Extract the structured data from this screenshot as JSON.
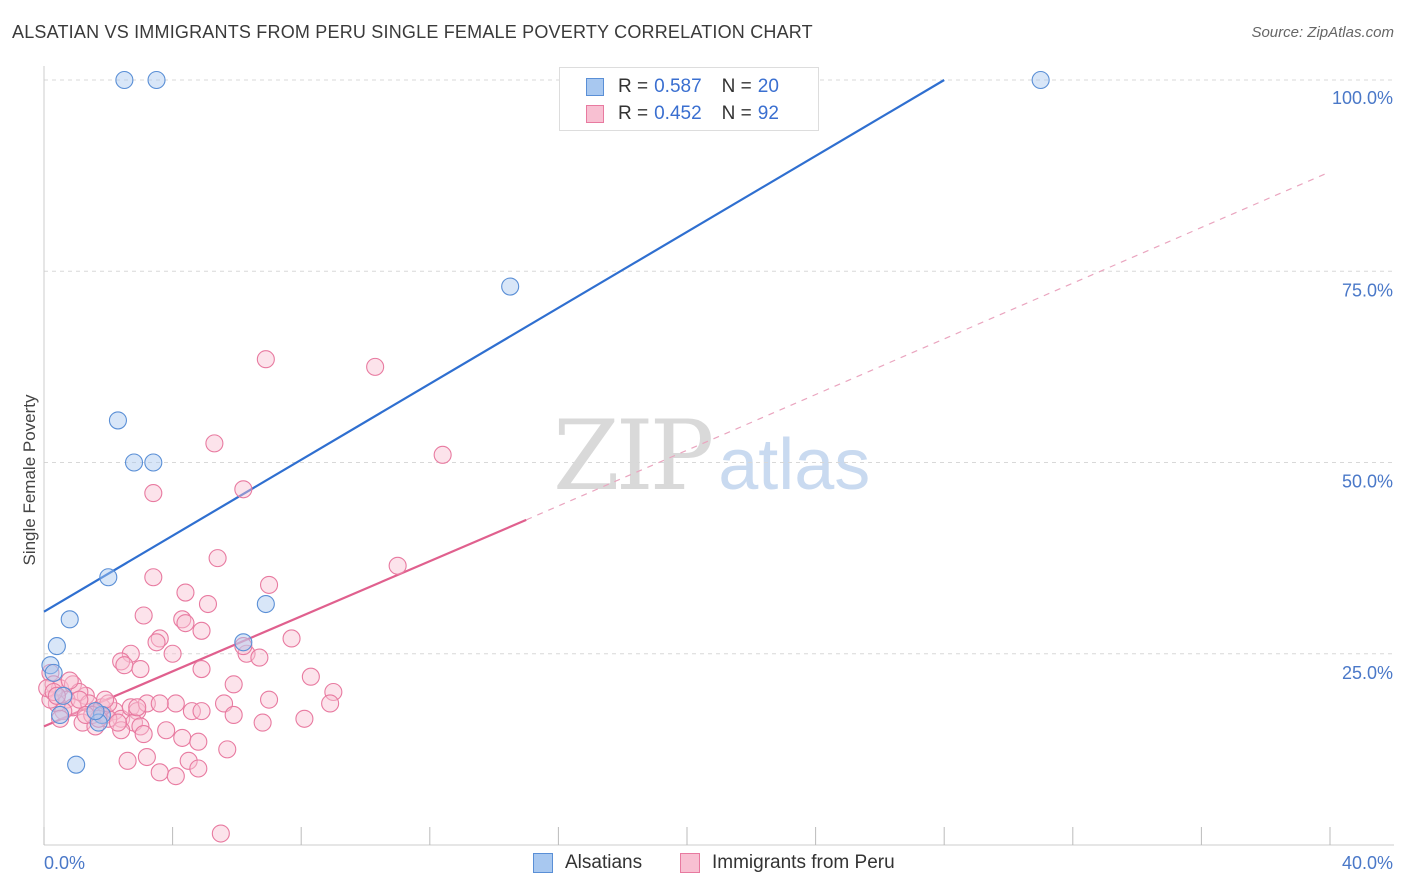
{
  "header": {
    "title": "ALSATIAN VS IMMIGRANTS FROM PERU SINGLE FEMALE POVERTY CORRELATION CHART",
    "source": "Source: ZipAtlas.com"
  },
  "watermark": {
    "zip": "ZIP",
    "atlas": "atlas"
  },
  "legend": {
    "rows": [
      {
        "r_label": "R =",
        "r_value": "0.587",
        "n_label": "N =",
        "n_value": "20"
      },
      {
        "r_label": "R =",
        "r_value": "0.452",
        "n_label": "N =",
        "n_value": "92"
      }
    ]
  },
  "bottom_legend": {
    "series1": "Alsatians",
    "series2": "Immigrants from Peru"
  },
  "colors": {
    "blue_fill": "#a8c8f0",
    "blue_stroke": "#5a8fd6",
    "blue_line": "#2f6fd0",
    "pink_fill": "#f8c0d2",
    "pink_stroke": "#e87aa0",
    "pink_line": "#e0608e",
    "axis_text": "#4a78c8",
    "grid": "#d8d8d8"
  },
  "chart_data": {
    "type": "scatter",
    "title": "ALSATIAN VS IMMIGRANTS FROM PERU SINGLE FEMALE POVERTY CORRELATION CHART",
    "xlabel": "",
    "ylabel": "Single Female Poverty",
    "xlim": [
      0,
      40
    ],
    "ylim": [
      0,
      100
    ],
    "x_tick_labels": [
      "0.0%",
      "40.0%"
    ],
    "y_ticks": [
      25,
      50,
      75,
      100
    ],
    "y_tick_labels": [
      "25.0%",
      "50.0%",
      "75.0%",
      "100.0%"
    ],
    "grid": true,
    "series": [
      {
        "name": "Alsatians",
        "r": 0.587,
        "n": 20,
        "trend": {
          "x": [
            0,
            28
          ],
          "y": [
            30.5,
            100
          ]
        },
        "points": [
          [
            2.5,
            100
          ],
          [
            3.5,
            100
          ],
          [
            31,
            100
          ],
          [
            14.5,
            73
          ],
          [
            2.3,
            55.5
          ],
          [
            2.8,
            50
          ],
          [
            3.4,
            50
          ],
          [
            2.0,
            35
          ],
          [
            0.8,
            29.5
          ],
          [
            6.9,
            31.5
          ],
          [
            0.4,
            26
          ],
          [
            6.2,
            26.5
          ],
          [
            0.2,
            23.5
          ],
          [
            0.3,
            22.5
          ],
          [
            0.6,
            19.5
          ],
          [
            0.5,
            17
          ],
          [
            1.8,
            17
          ],
          [
            1.7,
            16
          ],
          [
            1.6,
            17.5
          ],
          [
            1.0,
            10.5
          ]
        ]
      },
      {
        "name": "Immigrants from Peru",
        "r": 0.452,
        "n": 92,
        "trend": {
          "x": [
            0,
            15
          ],
          "y": [
            15.5,
            42.5
          ]
        },
        "trend_extended": {
          "x": [
            15,
            40
          ],
          "y": [
            42.5,
            88
          ]
        },
        "points": [
          [
            6.9,
            63.5
          ],
          [
            10.3,
            62.5
          ],
          [
            5.3,
            52.5
          ],
          [
            12.4,
            51
          ],
          [
            6.2,
            46.5
          ],
          [
            3.4,
            46
          ],
          [
            5.4,
            37.5
          ],
          [
            11.0,
            36.5
          ],
          [
            3.4,
            35
          ],
          [
            7.0,
            34
          ],
          [
            4.4,
            33
          ],
          [
            5.1,
            31.5
          ],
          [
            3.1,
            30
          ],
          [
            4.3,
            29.5
          ],
          [
            4.4,
            29
          ],
          [
            4.9,
            28
          ],
          [
            3.6,
            27
          ],
          [
            7.7,
            27
          ],
          [
            3.5,
            26.5
          ],
          [
            2.7,
            25
          ],
          [
            6.3,
            25
          ],
          [
            6.2,
            26
          ],
          [
            6.7,
            24.5
          ],
          [
            2.4,
            24
          ],
          [
            2.5,
            23.5
          ],
          [
            4.0,
            25
          ],
          [
            4.9,
            23
          ],
          [
            3.0,
            23
          ],
          [
            8.3,
            22
          ],
          [
            5.9,
            21
          ],
          [
            9.0,
            20
          ],
          [
            0.2,
            22.5
          ],
          [
            0.3,
            21
          ],
          [
            0.5,
            20.5
          ],
          [
            0.9,
            21
          ],
          [
            1.3,
            19.5
          ],
          [
            1.1,
            20
          ],
          [
            1.4,
            18.5
          ],
          [
            0.7,
            19
          ],
          [
            0.4,
            18.5
          ],
          [
            0.9,
            18
          ],
          [
            1.6,
            17.5
          ],
          [
            1.9,
            17
          ],
          [
            2.2,
            17.5
          ],
          [
            2.4,
            16.5
          ],
          [
            2.7,
            18
          ],
          [
            2.9,
            17.5
          ],
          [
            3.2,
            18.5
          ],
          [
            2.8,
            16
          ],
          [
            1.2,
            16
          ],
          [
            1.6,
            15.5
          ],
          [
            2.0,
            16.5
          ],
          [
            2.4,
            15
          ],
          [
            3.0,
            15.5
          ],
          [
            3.1,
            14.5
          ],
          [
            4.1,
            18.5
          ],
          [
            4.6,
            17.5
          ],
          [
            4.9,
            17.5
          ],
          [
            5.6,
            18.5
          ],
          [
            5.9,
            17
          ],
          [
            7.0,
            19
          ],
          [
            6.8,
            16
          ],
          [
            8.1,
            16.5
          ],
          [
            8.9,
            18.5
          ],
          [
            0.6,
            17.5
          ],
          [
            1.8,
            18
          ],
          [
            1.5,
            17
          ],
          [
            2.3,
            16
          ],
          [
            0.2,
            19
          ],
          [
            0.1,
            20.5
          ],
          [
            0.5,
            16.5
          ],
          [
            1.7,
            16.5
          ],
          [
            2.6,
            11
          ],
          [
            3.2,
            11.5
          ],
          [
            3.6,
            9.5
          ],
          [
            4.1,
            9
          ],
          [
            4.5,
            11
          ],
          [
            4.8,
            10
          ],
          [
            4.3,
            14
          ],
          [
            4.8,
            13.5
          ],
          [
            5.7,
            12.5
          ],
          [
            0.3,
            20
          ],
          [
            0.8,
            21.5
          ],
          [
            1.1,
            19
          ],
          [
            2.0,
            18.5
          ],
          [
            2.9,
            18
          ],
          [
            3.6,
            18.5
          ],
          [
            0.4,
            19.5
          ],
          [
            1.3,
            17
          ],
          [
            1.9,
            19
          ],
          [
            3.8,
            15
          ],
          [
            5.5,
            1.5
          ]
        ]
      }
    ]
  }
}
